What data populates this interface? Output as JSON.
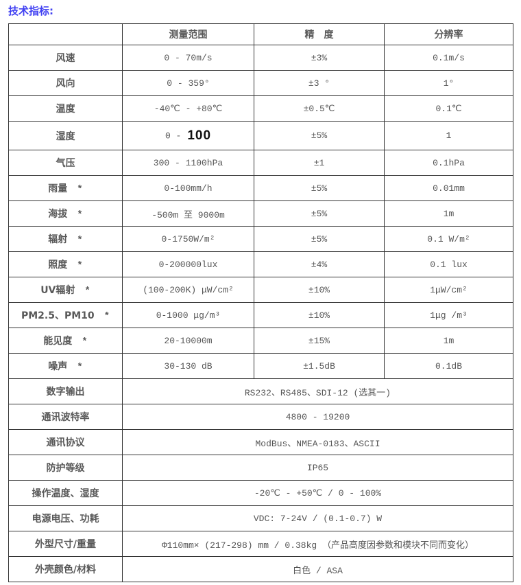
{
  "page": {
    "title": "技术指标:"
  },
  "colors": {
    "title": "#4141f2",
    "border": "#333333",
    "label_text": "#595959",
    "value_text": "#555555",
    "highlight_text": "#111111"
  },
  "table": {
    "headers": {
      "col1": "",
      "col2": "测量范围",
      "col3": "精　度",
      "col4": "分辨率"
    },
    "rows": [
      {
        "label": "风速",
        "star": "",
        "range": "0 - 70m/s",
        "accuracy": "±3%",
        "resolution": "0.1m/s"
      },
      {
        "label": "风向",
        "star": "",
        "range": "0  -  359°",
        "accuracy": "±3 °",
        "resolution": "1°"
      },
      {
        "label": "温度",
        "star": "",
        "range": "-40℃ - +80℃",
        "accuracy": "±0.5℃",
        "resolution": "0.1℃"
      },
      {
        "label": "湿度",
        "star": "",
        "range": "0 -",
        "range_big": "100",
        "accuracy": "±5%",
        "resolution": "1"
      },
      {
        "label": "气压",
        "star": "",
        "range": "300 - 1100hPa",
        "accuracy": "±1",
        "resolution": "0.1hPa"
      },
      {
        "label": "雨量",
        "star": "*",
        "range": "0-100mm/h",
        "accuracy": "±5%",
        "resolution": "0.01mm"
      },
      {
        "label": "海拔",
        "star": "*",
        "range": "-500m 至 9000m",
        "accuracy": "±5%",
        "resolution": "1m"
      },
      {
        "label": "辐射",
        "star": "*",
        "range": "0-1750W/m²",
        "accuracy": "±5%",
        "resolution": "0.1 W/m²"
      },
      {
        "label": "照度",
        "star": "*",
        "range": "0-200000lux",
        "accuracy": "±4%",
        "resolution": "0.1 lux"
      },
      {
        "label": "UV辐射",
        "star": "*",
        "range": "(100-200K) μW/cm²",
        "accuracy": "±10%",
        "resolution": "1μW/cm²"
      },
      {
        "label": "PM2.5、PM10",
        "star": "*",
        "range": "0-1000 μg/m³",
        "accuracy": "±10%",
        "resolution": "1μg /m³"
      },
      {
        "label": "能见度",
        "star": "*",
        "range": "20-10000m",
        "accuracy": "±15%",
        "resolution": "1m"
      },
      {
        "label": "噪声",
        "star": "*",
        "range": "30-130 dB",
        "accuracy": "±1.5dB",
        "resolution": "0.1dB"
      }
    ],
    "merged_rows": [
      {
        "label": "数字输出",
        "value": "RS232、RS485、SDI-12 (选其一)"
      },
      {
        "label": "通讯波特率",
        "value": "4800 - 19200"
      },
      {
        "label": "通讯协议",
        "value": "ModBus、NMEA-0183、ASCII"
      },
      {
        "label": "防护等级",
        "value": "IP65"
      },
      {
        "label": "操作温度、湿度",
        "value": "-20℃ - +50℃  /  0 - 100%"
      },
      {
        "label": "电源电压、功耗",
        "value": "VDC: 7-24V /  (0.1-0.7) W"
      },
      {
        "label": "外型尺寸/重量",
        "value": "Φ110mm× (217-298) mm  /  0.38kg  （产品高度因参数和模块不同而变化）"
      },
      {
        "label": "外壳颜色/材料",
        "value": "白色 / ASA"
      }
    ]
  }
}
